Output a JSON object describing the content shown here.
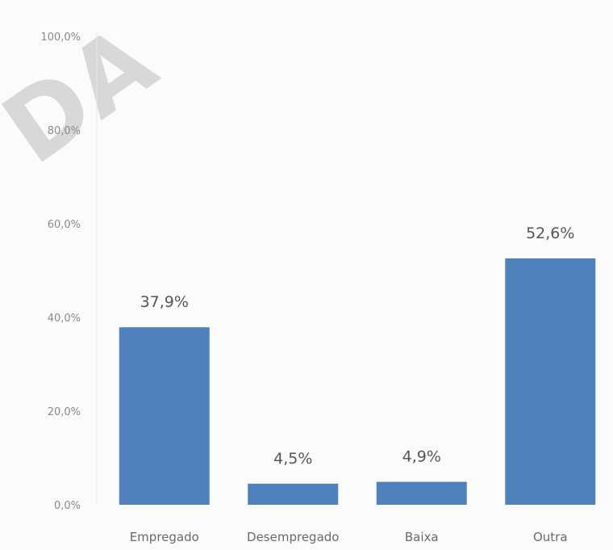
{
  "chart_data": {
    "type": "bar",
    "categories": [
      "Empregado",
      "Desempregado",
      "Baixa",
      "Outra"
    ],
    "values": [
      37.9,
      4.5,
      4.9,
      52.6
    ],
    "value_labels": [
      "37,9%",
      "4,5%",
      "4,9%",
      "52,6%"
    ],
    "ylim": [
      0,
      100
    ],
    "y_ticks": [
      0,
      20,
      40,
      60,
      80,
      100
    ],
    "y_tick_labels": [
      "0,0%",
      "20,0%",
      "40,0%",
      "60,0%",
      "80,0%",
      "100,0%"
    ],
    "grid": false,
    "legend": "none",
    "bar_color": "#4f81bd",
    "title": "",
    "xlabel": "",
    "ylabel": ""
  },
  "watermark": {
    "text": "DA"
  }
}
